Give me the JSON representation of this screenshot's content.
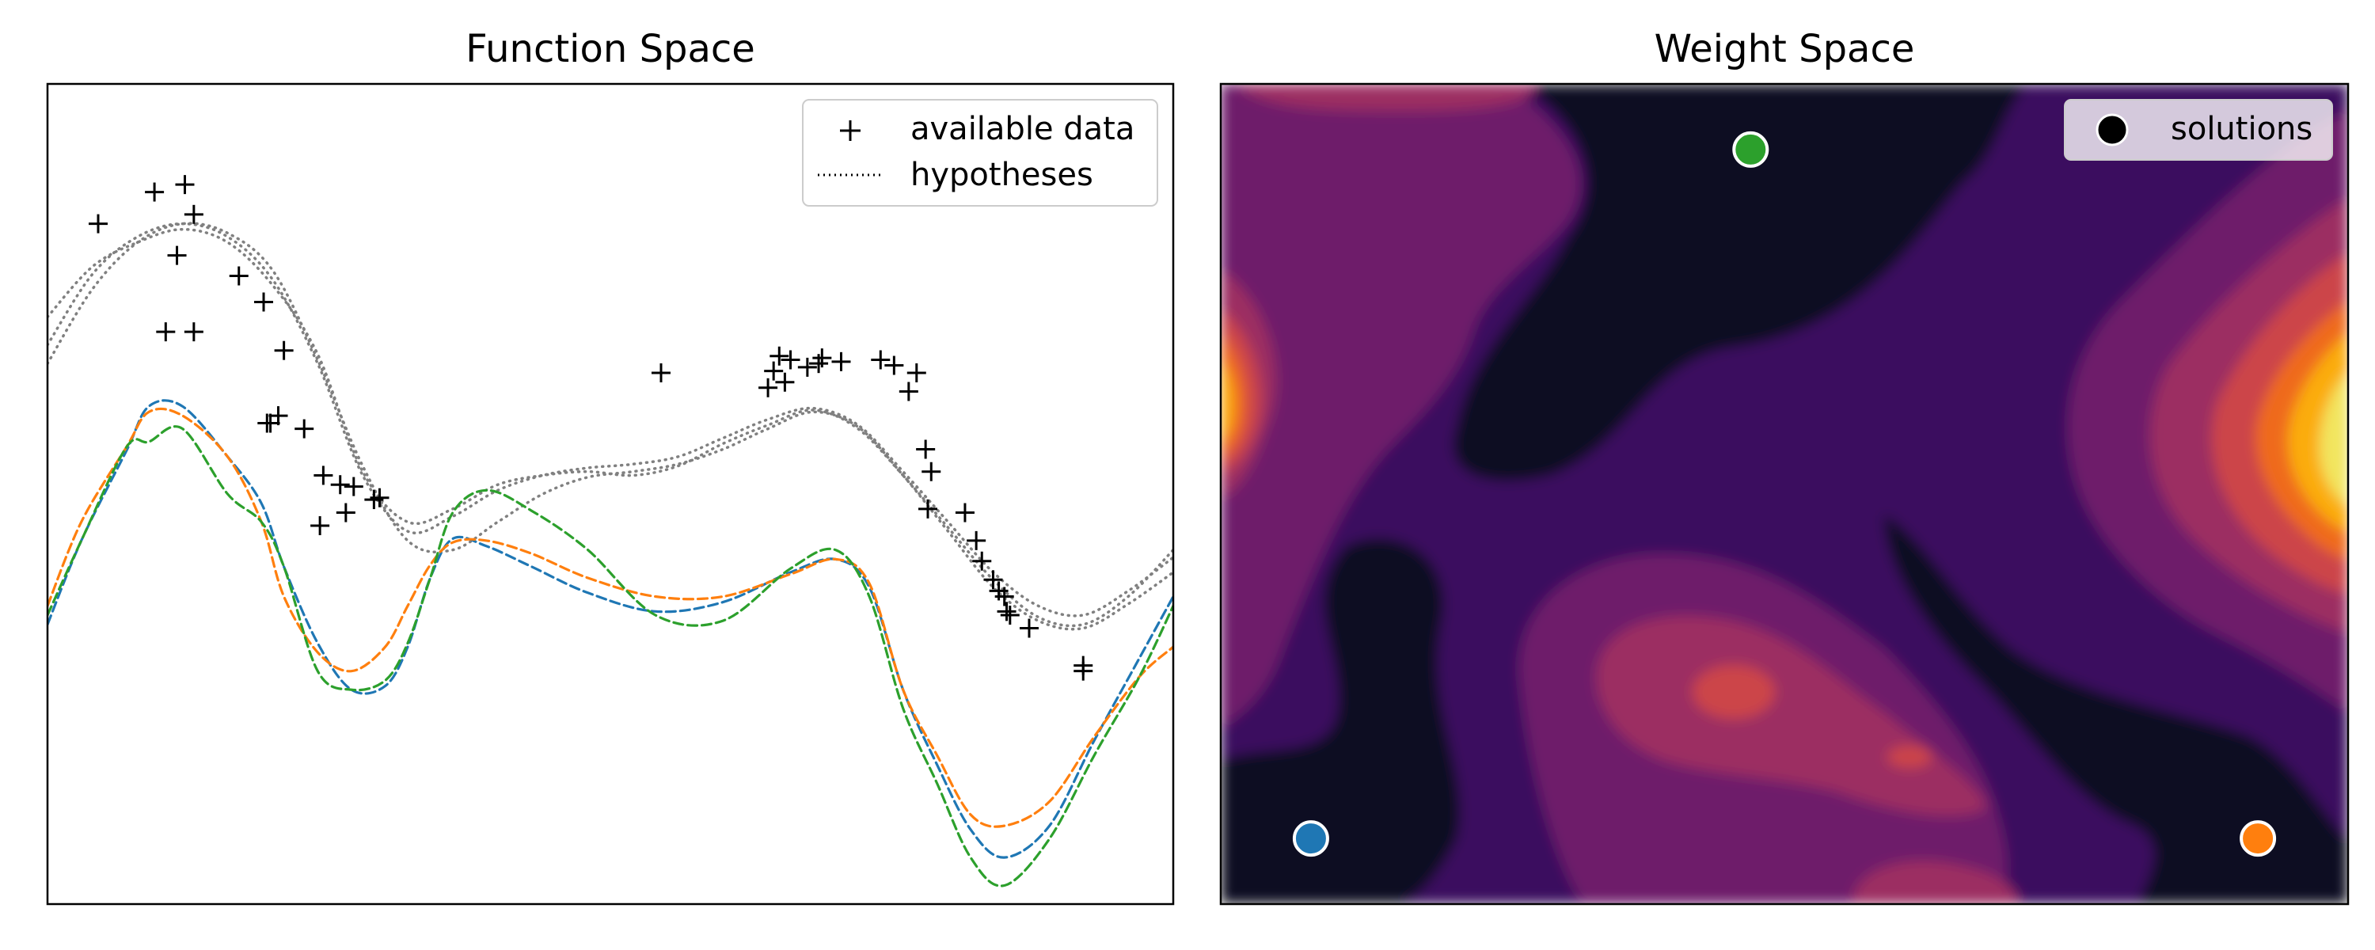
{
  "chart_data": [
    {
      "type": "line",
      "title": "Function Space",
      "xlabel": "",
      "ylabel": "",
      "xlim": [
        0,
        10
      ],
      "ylim": [
        -2.6,
        1.8
      ],
      "grid": false,
      "legend": {
        "position": "top-right",
        "entries": [
          {
            "label": "available data",
            "marker": "+",
            "color": "#000000"
          },
          {
            "label": "hypotheses",
            "style": "dotted",
            "color": "#000000"
          }
        ]
      },
      "data_points": {
        "x": [
          0.45,
          0.95,
          1.22,
          1.3,
          1.15,
          1.05,
          1.7,
          1.92,
          1.3,
          2.1,
          1.98,
          1.95,
          2.05,
          2.28,
          2.6,
          2.72,
          2.9,
          2.95,
          2.42,
          2.65,
          2.45,
          5.45,
          6.45,
          6.55,
          6.4,
          6.6,
          6.5,
          6.75,
          6.85,
          6.88,
          7.05,
          7.4,
          7.52,
          7.65,
          7.72,
          7.8,
          7.85,
          7.82,
          8.15,
          8.25,
          8.3,
          8.4,
          8.5,
          8.45,
          8.55,
          8.52,
          8.72,
          9.2,
          9.2
        ],
        "y": [
          1.05,
          1.22,
          1.26,
          1.1,
          0.88,
          0.47,
          0.77,
          0.63,
          0.47,
          0.37,
          -0.02,
          -0.02,
          0.02,
          -0.05,
          -0.35,
          -0.36,
          -0.43,
          -0.42,
          -0.57,
          -0.5,
          -0.3,
          0.25,
          0.26,
          0.2,
          0.17,
          0.32,
          0.34,
          0.28,
          0.3,
          0.33,
          0.31,
          0.32,
          0.29,
          0.15,
          0.25,
          -0.16,
          -0.28,
          -0.48,
          -0.5,
          -0.65,
          -0.76,
          -0.86,
          -0.95,
          -0.92,
          -1.05,
          -1.03,
          -1.12,
          -1.32,
          -1.35
        ]
      },
      "series": [
        {
          "color": "#1f77b4",
          "style": "dashed",
          "x": [
            0,
            0.3,
            0.7,
            0.9,
            1.2,
            1.6,
            1.9,
            2.1,
            2.4,
            2.7,
            3.0,
            3.2,
            3.4,
            3.6,
            3.9,
            4.3,
            4.8,
            5.4,
            6.0,
            6.6,
            7.0,
            7.3,
            7.6,
            7.9,
            8.2,
            8.5,
            8.9,
            9.3,
            9.7,
            10
          ],
          "y": [
            -1.1,
            -0.65,
            -0.17,
            0.07,
            0.07,
            -0.2,
            -0.45,
            -0.79,
            -1.2,
            -1.45,
            -1.43,
            -1.22,
            -0.85,
            -0.64,
            -0.68,
            -0.79,
            -0.93,
            -1.03,
            -0.98,
            -0.82,
            -0.75,
            -0.9,
            -1.45,
            -1.85,
            -2.2,
            -2.35,
            -2.18,
            -1.72,
            -1.28,
            -0.95
          ]
        },
        {
          "color": "#ff7f0e",
          "style": "dashed",
          "x": [
            0,
            0.3,
            0.7,
            0.9,
            1.2,
            1.6,
            1.9,
            2.1,
            2.4,
            2.7,
            3.0,
            3.2,
            3.4,
            3.6,
            3.9,
            4.3,
            4.8,
            5.4,
            6.0,
            6.6,
            7.0,
            7.3,
            7.6,
            7.9,
            8.2,
            8.5,
            8.9,
            9.3,
            9.7,
            10
          ],
          "y": [
            -1.0,
            -0.55,
            -0.15,
            0.04,
            0.02,
            -0.2,
            -0.55,
            -0.95,
            -1.25,
            -1.35,
            -1.22,
            -1.0,
            -0.78,
            -0.66,
            -0.65,
            -0.72,
            -0.85,
            -0.95,
            -0.95,
            -0.83,
            -0.75,
            -0.88,
            -1.45,
            -1.8,
            -2.12,
            -2.18,
            -2.05,
            -1.7,
            -1.38,
            -1.22
          ]
        },
        {
          "color": "#2ca02c",
          "style": "dashed",
          "x": [
            0,
            0.3,
            0.7,
            0.9,
            1.2,
            1.6,
            1.9,
            2.1,
            2.4,
            2.7,
            3.0,
            3.2,
            3.4,
            3.6,
            3.9,
            4.3,
            4.8,
            5.4,
            6.0,
            6.6,
            7.0,
            7.3,
            7.6,
            7.9,
            8.2,
            8.5,
            8.9,
            9.3,
            9.7,
            10
          ],
          "y": [
            -1.05,
            -0.65,
            -0.15,
            -0.12,
            -0.05,
            -0.4,
            -0.55,
            -0.79,
            -1.35,
            -1.45,
            -1.4,
            -1.2,
            -0.85,
            -0.5,
            -0.38,
            -0.49,
            -0.7,
            -1.05,
            -1.08,
            -0.8,
            -0.7,
            -0.95,
            -1.55,
            -1.95,
            -2.35,
            -2.5,
            -2.25,
            -1.8,
            -1.38,
            -1.0
          ]
        },
        {
          "color": "#808080",
          "style": "dotted",
          "x": [
            0,
            0.4,
            0.8,
            1.2,
            1.6,
            2.0,
            2.4,
            2.8,
            3.2,
            3.6,
            4.0,
            4.4,
            4.8,
            5.2,
            5.6,
            6.0,
            6.4,
            6.8,
            7.2,
            7.6,
            8.0,
            8.4,
            8.8,
            9.2,
            9.6,
            10
          ],
          "y": [
            0.55,
            0.82,
            0.95,
            1.02,
            0.95,
            0.72,
            0.35,
            -0.28,
            -0.55,
            -0.48,
            -0.35,
            -0.3,
            -0.28,
            -0.3,
            -0.25,
            -0.13,
            -0.03,
            0.05,
            -0.05,
            -0.3,
            -0.58,
            -0.86,
            -1.06,
            -1.1,
            -0.95,
            -0.7
          ]
        },
        {
          "color": "#808080",
          "style": "dotted",
          "x": [
            0,
            0.4,
            0.8,
            1.2,
            1.6,
            2.0,
            2.4,
            2.8,
            3.2,
            3.6,
            4.0,
            4.4,
            4.8,
            5.2,
            5.6,
            6.0,
            6.4,
            6.8,
            7.2,
            7.6,
            8.0,
            8.4,
            8.8,
            9.2,
            9.6,
            10
          ],
          "y": [
            0.4,
            0.78,
            0.98,
            1.05,
            0.98,
            0.75,
            0.3,
            -0.3,
            -0.6,
            -0.52,
            -0.38,
            -0.3,
            -0.26,
            -0.24,
            -0.2,
            -0.1,
            0.0,
            0.06,
            -0.03,
            -0.28,
            -0.55,
            -0.82,
            -1.0,
            -1.05,
            -0.92,
            -0.74
          ]
        },
        {
          "color": "#808080",
          "style": "dotted",
          "x": [
            0,
            0.4,
            0.8,
            1.2,
            1.6,
            2.0,
            2.4,
            2.8,
            3.2,
            3.6,
            4.0,
            4.4,
            4.8,
            5.2,
            5.6,
            6.0,
            6.4,
            6.8,
            7.2,
            7.6,
            8.0,
            8.4,
            8.8,
            9.2,
            9.6,
            10
          ],
          "y": [
            0.3,
            0.7,
            0.95,
            1.05,
            1.0,
            0.8,
            0.32,
            -0.25,
            -0.65,
            -0.7,
            -0.55,
            -0.4,
            -0.31,
            -0.28,
            -0.24,
            -0.16,
            -0.05,
            0.04,
            -0.04,
            -0.3,
            -0.6,
            -0.9,
            -1.08,
            -1.12,
            -0.99,
            -0.82
          ]
        }
      ]
    },
    {
      "type": "heatmap",
      "title": "Weight Space",
      "xlabel": "",
      "ylabel": "",
      "xlim": [
        0,
        1
      ],
      "ylim": [
        0,
        1
      ],
      "grid": false,
      "colormap": "inferno",
      "levels": [
        "#0a0820",
        "#3b0f5e",
        "#6e1a6b",
        "#9c2e62",
        "#cc4448",
        "#ef6a1e",
        "#fbac10",
        "#f2e55e"
      ],
      "legend": {
        "position": "top-right",
        "entries": [
          {
            "label": "solutions",
            "marker": "circle",
            "color": "#000000"
          }
        ]
      },
      "solutions": [
        {
          "color": "#1f77b4",
          "x": 0.08,
          "y": 0.08
        },
        {
          "color": "#2ca02c",
          "x": 0.47,
          "y": 0.92
        },
        {
          "color": "#ff7f0e",
          "x": 0.92,
          "y": 0.08
        }
      ]
    }
  ]
}
